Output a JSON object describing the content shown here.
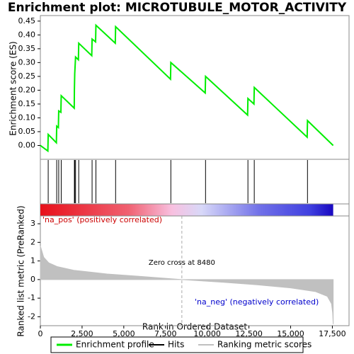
{
  "chart_data": [
    {
      "type": "line",
      "title": "Enrichment plot: MICROTUBULE_MOTOR_ACTIVITY",
      "y_label": "Enrichment score (ES)",
      "xlim": [
        0,
        18500
      ],
      "ylim": [
        -0.05,
        0.47
      ],
      "yticks": [
        {
          "value": 0,
          "label": "0.00"
        },
        0.05,
        {
          "value": 0.1,
          "label": "0.10"
        },
        0.15,
        {
          "value": 0.2,
          "label": "0.20"
        },
        0.25,
        {
          "value": 0.3,
          "label": "0.30"
        },
        0.35,
        {
          "value": 0.4,
          "label": "0.40"
        },
        0.45
      ],
      "series": [
        {
          "name": "Enrichment profile",
          "color": "#00ee00",
          "x": [
            0,
            450,
            470,
            960,
            980,
            1080,
            1100,
            1230,
            1250,
            2030,
            2040,
            2060,
            2110,
            2280,
            2300,
            3080,
            3100,
            3310,
            3330,
            4490,
            4510,
            7800,
            7820,
            9880,
            9900,
            12420,
            12440,
            12800,
            12820,
            15990,
            16010,
            17550
          ],
          "values": [
            0,
            -0.02,
            0.04,
            0.01,
            0.07,
            0.065,
            0.125,
            0.12,
            0.18,
            0.135,
            0.2,
            0.26,
            0.32,
            0.31,
            0.37,
            0.325,
            0.385,
            0.375,
            0.435,
            0.37,
            0.43,
            0.24,
            0.3,
            0.19,
            0.25,
            0.11,
            0.17,
            0.15,
            0.21,
            0.03,
            0.09,
            0
          ]
        },
        {
          "name": "Hits",
          "color": "#000000",
          "x": [
            470,
            980,
            1100,
            1250,
            2040,
            2060,
            2110,
            2300,
            3100,
            3330,
            4510,
            7820,
            9900,
            12440,
            12820,
            16010
          ]
        }
      ]
    },
    {
      "type": "area",
      "x_label": "Rank in Ordered Dataset",
      "y_label": "Ranked list metric (PreRanked)",
      "xlim": [
        0,
        18500
      ],
      "ylim": [
        -2.48,
        3.42
      ],
      "xticks": [
        0,
        {
          "value": 2500,
          "label": "2,500"
        },
        {
          "value": 5000,
          "label": "5,000"
        },
        {
          "value": 7500,
          "label": "7,500"
        },
        {
          "value": 10000,
          "label": "10,000"
        },
        {
          "value": 12500,
          "label": "12,500"
        },
        {
          "value": 15000,
          "label": "15,000"
        },
        {
          "value": 17500,
          "label": "17,500"
        }
      ],
      "yticks": [
        -2,
        -1,
        0,
        1,
        2,
        3
      ],
      "series": [
        {
          "name": "Ranking metric scores",
          "color": "#c0c0c0",
          "x": [
            0,
            200,
            500,
            1000,
            2000,
            4000,
            6000,
            8480,
            11000,
            13000,
            15000,
            16500,
            17200,
            17450,
            17520,
            17550
          ],
          "values": [
            1.8,
            1.2,
            0.9,
            0.7,
            0.5,
            0.3,
            0.17,
            0,
            -0.15,
            -0.28,
            -0.45,
            -0.65,
            -0.9,
            -1.3,
            -1.8,
            -2.4
          ]
        }
      ],
      "zero_cross": 8480,
      "zero_cross_label": "Zero cross at 8480",
      "pos_label": "'na_pos' (positively correlated)",
      "neg_label": "'na_neg' (negatively correlated)"
    }
  ]
}
